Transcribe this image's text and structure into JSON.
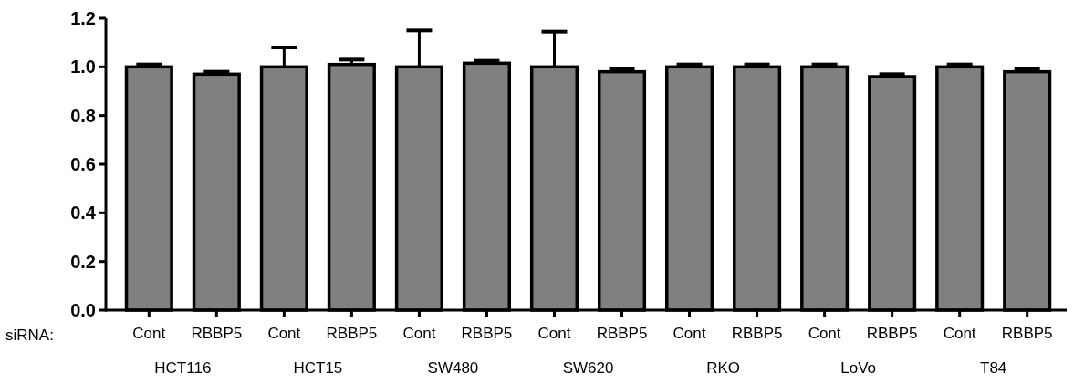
{
  "chart_data": {
    "type": "bar",
    "categories": [
      "Cont",
      "RBBP5",
      "Cont",
      "RBBP5",
      "Cont",
      "RBBP5",
      "Cont",
      "RBBP5",
      "Cont",
      "RBBP5",
      "Cont",
      "RBBP5",
      "Cont",
      "RBBP5"
    ],
    "values": [
      1.0,
      0.97,
      1.0,
      1.01,
      1.0,
      1.015,
      1.0,
      0.98,
      1.0,
      1.0,
      1.0,
      0.96,
      1.0,
      0.98
    ],
    "errors": [
      0.01,
      0.01,
      0.08,
      0.02,
      0.15,
      0.01,
      0.145,
      0.01,
      0.01,
      0.01,
      0.01,
      0.01,
      0.01,
      0.01
    ],
    "color": "#808080",
    "ylim": [
      0,
      1.2
    ],
    "yticks": [
      {
        "value": 0,
        "label": "0.0"
      },
      0.2,
      0.4,
      0.6,
      0.8,
      {
        "value": 1,
        "label": "1.0"
      },
      1.2
    ],
    "grid": false,
    "annotations": [
      "siRNA:",
      "HCT116",
      "HCT15",
      "SW480",
      "SW620",
      "RKO",
      "LoVo",
      "T84"
    ]
  }
}
